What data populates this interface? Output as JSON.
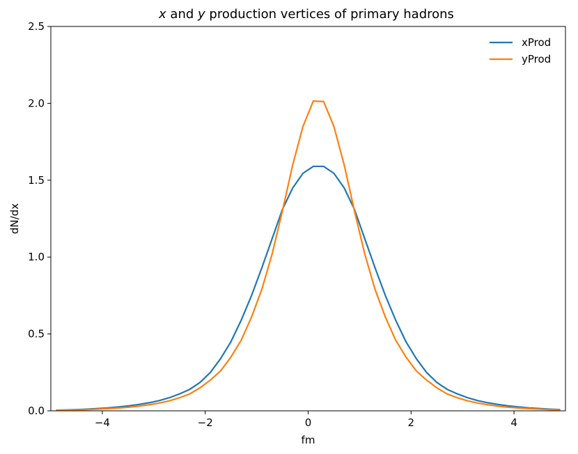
{
  "chart_data": {
    "type": "line",
    "title_prefix_var": "x",
    "title_mid": " and ",
    "title_var2": "y",
    "title_suffix": " production vertices of primary hadrons",
    "xlabel": "fm",
    "ylabel": "dN/dx",
    "xlim": [
      -5,
      5
    ],
    "ylim": [
      0,
      2.5
    ],
    "xticks": [
      -4,
      -2,
      0,
      2,
      4
    ],
    "xtick_labels": [
      "−4",
      "−2",
      "0",
      "2",
      "4"
    ],
    "yticks": [
      0,
      0.5,
      1.0,
      1.5,
      2.0,
      2.5
    ],
    "ytick_labels": [
      "0.0",
      "0.5",
      "1.0",
      "1.5",
      "2.0",
      "2.5"
    ],
    "grid": false,
    "legend_position": "upper-right",
    "x": [
      -4.9,
      -4.7,
      -4.5,
      -4.3,
      -4.1,
      -3.9,
      -3.7,
      -3.5,
      -3.3,
      -3.1,
      -2.9,
      -2.7,
      -2.5,
      -2.3,
      -2.1,
      -1.9,
      -1.7,
      -1.5,
      -1.3,
      -1.1,
      -0.9,
      -0.7,
      -0.5,
      -0.3,
      -0.1,
      0.1,
      0.3,
      0.5,
      0.7,
      0.9,
      1.1,
      1.3,
      1.5,
      1.7,
      1.9,
      2.1,
      2.3,
      2.5,
      2.7,
      2.9,
      3.1,
      3.3,
      3.5,
      3.7,
      3.9,
      4.1,
      4.3,
      4.5,
      4.7,
      4.9
    ],
    "series": [
      {
        "name": "xProd",
        "color": "#1f77b4",
        "values": [
          0.004,
          0.006,
          0.008,
          0.011,
          0.015,
          0.019,
          0.025,
          0.032,
          0.041,
          0.052,
          0.066,
          0.085,
          0.11,
          0.14,
          0.185,
          0.25,
          0.34,
          0.45,
          0.59,
          0.75,
          0.93,
          1.12,
          1.31,
          1.45,
          1.545,
          1.59,
          1.59,
          1.545,
          1.45,
          1.31,
          1.12,
          0.93,
          0.75,
          0.59,
          0.45,
          0.34,
          0.25,
          0.185,
          0.14,
          0.11,
          0.085,
          0.066,
          0.052,
          0.041,
          0.032,
          0.025,
          0.019,
          0.015,
          0.011,
          0.008
        ]
      },
      {
        "name": "yProd",
        "color": "#ff7f0e",
        "values": [
          0.003,
          0.004,
          0.006,
          0.008,
          0.011,
          0.014,
          0.018,
          0.023,
          0.03,
          0.039,
          0.05,
          0.065,
          0.085,
          0.11,
          0.15,
          0.2,
          0.26,
          0.35,
          0.46,
          0.61,
          0.79,
          1.02,
          1.3,
          1.6,
          1.85,
          2.015,
          2.012,
          1.85,
          1.6,
          1.3,
          1.02,
          0.79,
          0.61,
          0.46,
          0.35,
          0.26,
          0.2,
          0.15,
          0.11,
          0.085,
          0.065,
          0.05,
          0.039,
          0.03,
          0.023,
          0.018,
          0.014,
          0.011,
          0.008,
          0.006
        ]
      }
    ]
  }
}
